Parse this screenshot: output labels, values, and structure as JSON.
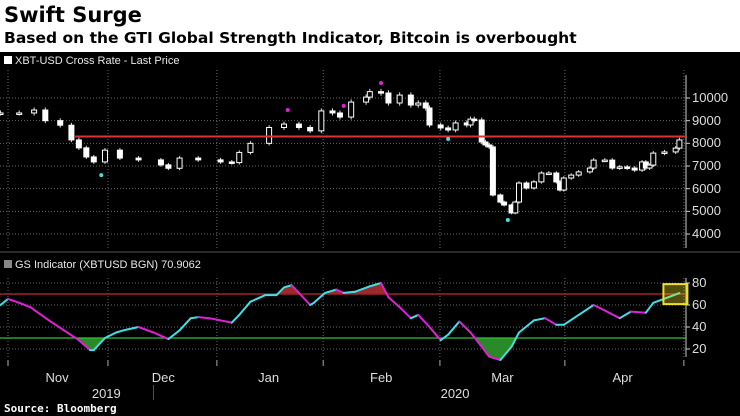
{
  "header": {
    "title": "Swift Surge",
    "subtitle": "Based on the GTI Global Strength Indicator, Bitcoin is overbought"
  },
  "source": "Source: Bloomberg",
  "colors": {
    "threshold_line": "#e0303e",
    "rising": "#3fe0e8",
    "falling": "#e020d8",
    "overbought_fill": "#9b2a2a",
    "oversold_fill": "#2a8a2a",
    "highlight": "#f0e020",
    "overbought_line": "#a0222a",
    "oversold_line": "#30c030"
  },
  "chart_data": [
    {
      "type": "candlestick",
      "legend": "XBT-USD Cross Rate - Last Price",
      "x_unit": "days since Nov 1 2019",
      "ylim": [
        3500,
        10800
      ],
      "yticks": [
        4000,
        5000,
        6000,
        7000,
        8000,
        9000,
        10000
      ],
      "threshold": 8300,
      "closes": [
        [
          -2,
          9340
        ],
        [
          3,
          9340
        ],
        [
          7,
          9470
        ],
        [
          10,
          9000
        ],
        [
          14,
          8800
        ],
        [
          17,
          8150
        ],
        [
          19,
          7800
        ],
        [
          21,
          7400
        ],
        [
          23,
          7180
        ],
        [
          26,
          7700
        ],
        [
          30,
          7350
        ],
        [
          35,
          7270
        ],
        [
          41,
          7050
        ],
        [
          43,
          6900
        ],
        [
          46,
          7350
        ],
        [
          51,
          7270
        ],
        [
          57,
          7180
        ],
        [
          60,
          7150
        ],
        [
          62,
          7600
        ],
        [
          65,
          8000
        ],
        [
          70,
          8700
        ],
        [
          74,
          8850
        ],
        [
          78,
          8700
        ],
        [
          81,
          8550
        ],
        [
          84,
          9430
        ],
        [
          87,
          9340
        ],
        [
          89,
          9160
        ],
        [
          92,
          9820
        ],
        [
          96,
          10040
        ],
        [
          97,
          10280
        ],
        [
          100,
          10220
        ],
        [
          102,
          9780
        ],
        [
          105,
          10130
        ],
        [
          108,
          9690
        ],
        [
          110,
          9780
        ],
        [
          112,
          9560
        ],
        [
          113,
          8810
        ],
        [
          116,
          8680
        ],
        [
          118,
          8590
        ],
        [
          120,
          8900
        ],
        [
          123,
          8810
        ],
        [
          124,
          9070
        ],
        [
          125,
          9030
        ],
        [
          127,
          8060
        ],
        [
          128,
          7930
        ],
        [
          129,
          7840
        ],
        [
          130,
          5720
        ],
        [
          132,
          5410
        ],
        [
          133,
          5280
        ],
        [
          135,
          4930
        ],
        [
          136,
          5410
        ],
        [
          137,
          6250
        ],
        [
          139,
          6030
        ],
        [
          141,
          6300
        ],
        [
          143,
          6690
        ],
        [
          145,
          6690
        ],
        [
          147,
          6300
        ],
        [
          148,
          5940
        ],
        [
          149,
          6470
        ],
        [
          151,
          6600
        ],
        [
          153,
          6740
        ],
        [
          156,
          6910
        ],
        [
          157,
          7260
        ],
        [
          160,
          7260
        ],
        [
          162,
          6910
        ],
        [
          164,
          6960
        ],
        [
          166,
          6910
        ],
        [
          168,
          6820
        ],
        [
          170,
          7180
        ],
        [
          171,
          6910
        ],
        [
          172,
          7040
        ],
        [
          173,
          7570
        ],
        [
          176,
          7620
        ],
        [
          179,
          7790
        ],
        [
          180,
          8150
        ]
      ],
      "overbought_markers": [
        [
          75,
          9470
        ],
        [
          90,
          9650
        ],
        [
          100,
          10660
        ]
      ],
      "oversold_markers": [
        [
          25,
          6600
        ],
        [
          118,
          8190
        ],
        [
          134,
          4620
        ]
      ]
    },
    {
      "type": "line",
      "legend": "GS Indicator (XBTUSD BGN) 70.9062",
      "ylim": [
        0,
        85
      ],
      "yticks": [
        20,
        40,
        60,
        80
      ],
      "overbought": 70,
      "oversold": 30,
      "last_value": 70.9062,
      "points": [
        [
          -2,
          60
        ],
        [
          0,
          65.5
        ],
        [
          3,
          62
        ],
        [
          6,
          58
        ],
        [
          11,
          46
        ],
        [
          15,
          37
        ],
        [
          19,
          28
        ],
        [
          22,
          19
        ],
        [
          23,
          19
        ],
        [
          26,
          30
        ],
        [
          29,
          35
        ],
        [
          31,
          37
        ],
        [
          35,
          40
        ],
        [
          39,
          35
        ],
        [
          43,
          29
        ],
        [
          46,
          37
        ],
        [
          49,
          48
        ],
        [
          51,
          49
        ],
        [
          54,
          48
        ],
        [
          60,
          44
        ],
        [
          62,
          51
        ],
        [
          65,
          63
        ],
        [
          69,
          69
        ],
        [
          72,
          69
        ],
        [
          74,
          76
        ],
        [
          76,
          78
        ],
        [
          78,
          71
        ],
        [
          81,
          60
        ],
        [
          82,
          62
        ],
        [
          85,
          71
        ],
        [
          88,
          74
        ],
        [
          90,
          71
        ],
        [
          93,
          72
        ],
        [
          97,
          77
        ],
        [
          100,
          80
        ],
        [
          102,
          67
        ],
        [
          105,
          58
        ],
        [
          108,
          48
        ],
        [
          110,
          51
        ],
        [
          113,
          40
        ],
        [
          116,
          28
        ],
        [
          118,
          33
        ],
        [
          121,
          45
        ],
        [
          124,
          35
        ],
        [
          127,
          22
        ],
        [
          129,
          13
        ],
        [
          132,
          10
        ],
        [
          135,
          22
        ],
        [
          137,
          35
        ],
        [
          141,
          46
        ],
        [
          144,
          48
        ],
        [
          147,
          42
        ],
        [
          149,
          42
        ],
        [
          153,
          51
        ],
        [
          157,
          60
        ],
        [
          160,
          55
        ],
        [
          164,
          48
        ],
        [
          167,
          54
        ],
        [
          171,
          53
        ],
        [
          173,
          62
        ],
        [
          177,
          67
        ],
        [
          180,
          70.9
        ]
      ]
    }
  ],
  "x_axis": {
    "months": [
      {
        "label": "Nov",
        "day": 13
      },
      {
        "label": "Dec",
        "day": 41.5
      },
      {
        "label": "Jan",
        "day": 70
      },
      {
        "label": "Feb",
        "day": 100
      },
      {
        "label": "Mar",
        "day": 132.5
      },
      {
        "label": "Apr",
        "day": 165
      }
    ],
    "years": [
      {
        "label": "2019",
        "day": 26.5
      },
      {
        "label": "2020",
        "day": 120
      }
    ],
    "gridlines": [
      0,
      26.8,
      56,
      84.5,
      115.8,
      149.3,
      181.2
    ],
    "year_divider": 39
  }
}
